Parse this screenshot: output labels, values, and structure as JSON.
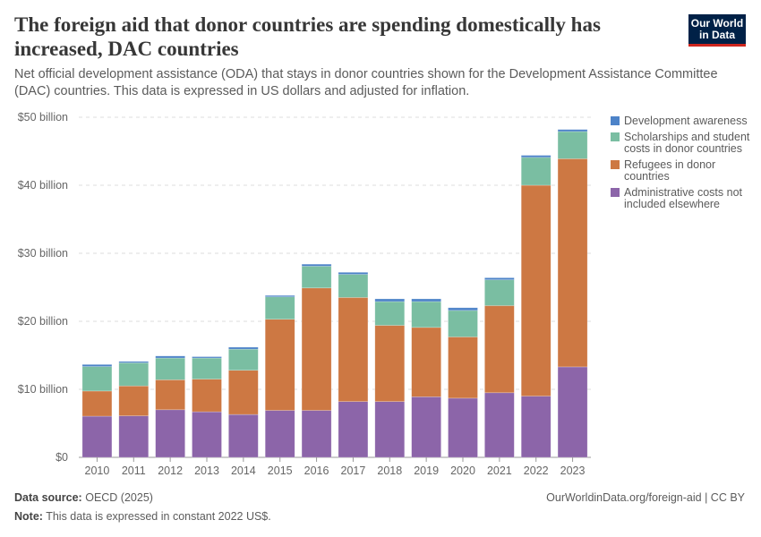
{
  "header": {
    "title": "The foreign aid that donor countries are spending domestically has increased, DAC countries",
    "subtitle": "Net official development assistance (ODA) that stays in donor countries shown for the Development Assistance Committee (DAC) countries. This data is expressed in US dollars and adjusted for inflation.",
    "logo": "Our World in Data"
  },
  "footer": {
    "source_label": "Data source:",
    "source": "OECD (2025)",
    "url": "OurWorldinData.org/foreign-aid | CC BY",
    "note_label": "Note:",
    "note": "This data is expressed in constant 2022 US$."
  },
  "chart_data": {
    "type": "bar",
    "stacked": true,
    "categories": [
      "2010",
      "2011",
      "2012",
      "2013",
      "2014",
      "2015",
      "2016",
      "2017",
      "2018",
      "2019",
      "2020",
      "2021",
      "2022",
      "2023"
    ],
    "ylim": [
      0,
      50
    ],
    "yticks": [
      0,
      10,
      20,
      30,
      40,
      50
    ],
    "ytick_labels": [
      "$0",
      "$10 billion",
      "$20 billion",
      "$30 billion",
      "$40 billion",
      "$50 billion"
    ],
    "grid": true,
    "legend_placement": "right",
    "series": [
      {
        "name": "Administrative costs not included elsewhere",
        "color": "#8c65a9",
        "values": [
          6.05,
          6.1,
          7.0,
          6.7,
          6.3,
          6.9,
          6.9,
          8.2,
          8.2,
          8.9,
          8.7,
          9.5,
          9.0,
          13.3
        ]
      },
      {
        "name": "Refugees in donor countries",
        "color": "#cd7843",
        "values": [
          3.7,
          4.4,
          4.4,
          4.8,
          6.5,
          13.4,
          18.0,
          15.3,
          11.2,
          10.2,
          9.0,
          12.8,
          31.0,
          30.6
        ]
      },
      {
        "name": "Scholarships and student costs in donor countries",
        "color": "#7abea2",
        "values": [
          3.6,
          3.4,
          3.2,
          3.1,
          3.1,
          3.3,
          3.2,
          3.4,
          3.5,
          3.8,
          3.9,
          3.8,
          4.1,
          4.0
        ]
      },
      {
        "name": "Development awareness",
        "color": "#4d83c8",
        "values": [
          0.3,
          0.2,
          0.3,
          0.2,
          0.3,
          0.2,
          0.3,
          0.3,
          0.4,
          0.4,
          0.4,
          0.3,
          0.3,
          0.3
        ]
      }
    ]
  }
}
